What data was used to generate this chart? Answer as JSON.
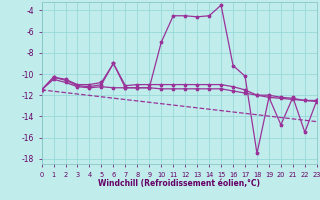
{
  "xlabel": "Windchill (Refroidissement éolien,°C)",
  "background_color": "#c0ecec",
  "grid_color": "#98d8d8",
  "line_color": "#993399",
  "xlim": [
    0,
    23
  ],
  "ylim": [
    -18.5,
    -3.2
  ],
  "yticks": [
    -18,
    -16,
    -14,
    -12,
    -10,
    -8,
    -6,
    -4
  ],
  "xticks": [
    0,
    1,
    2,
    3,
    4,
    5,
    6,
    7,
    8,
    9,
    10,
    11,
    12,
    13,
    14,
    15,
    16,
    17,
    18,
    19,
    20,
    21,
    22,
    23
  ],
  "series": [
    {
      "x": [
        0,
        1,
        2,
        3,
        4,
        5,
        6,
        7,
        8,
        9,
        10,
        11,
        12,
        13,
        14,
        15,
        16,
        17,
        18,
        19,
        20,
        21,
        22,
        23
      ],
      "y": [
        -11.5,
        -10.3,
        -10.6,
        -11.1,
        -11.2,
        -11.0,
        -9.0,
        -11.3,
        -11.3,
        -11.3,
        -7.0,
        -4.5,
        -4.5,
        -4.6,
        -4.5,
        -3.5,
        -9.2,
        -10.2,
        -17.5,
        -12.2,
        -14.8,
        -12.2,
        -15.5,
        -12.5
      ],
      "marker": true
    },
    {
      "x": [
        0,
        1,
        2,
        3,
        4,
        5,
        6,
        7,
        8,
        9,
        10,
        11,
        12,
        13,
        14,
        15,
        16,
        17,
        18,
        19,
        20,
        21,
        22,
        23
      ],
      "y": [
        -11.5,
        -10.5,
        -10.8,
        -11.2,
        -11.3,
        -11.2,
        -11.3,
        -11.3,
        -11.3,
        -11.3,
        -11.4,
        -11.4,
        -11.4,
        -11.4,
        -11.4,
        -11.4,
        -11.6,
        -11.8,
        -12.0,
        -12.2,
        -12.3,
        -12.4,
        -12.5,
        -12.6
      ],
      "marker": true
    },
    {
      "x": [
        0,
        1,
        2,
        3,
        4,
        5,
        6,
        7,
        8,
        9,
        10,
        11,
        12,
        13,
        14,
        15,
        16,
        17,
        18,
        19,
        20,
        21,
        22,
        23
      ],
      "y": [
        -11.5,
        -10.3,
        -10.5,
        -11.0,
        -11.0,
        -10.8,
        -9.0,
        -11.1,
        -11.0,
        -11.0,
        -11.0,
        -11.0,
        -11.0,
        -11.0,
        -11.0,
        -11.0,
        -11.2,
        -11.5,
        -12.0,
        -12.0,
        -12.2,
        -12.3,
        -12.5,
        -12.5
      ],
      "marker": true
    },
    {
      "x": [
        0,
        23
      ],
      "y": [
        -11.5,
        -14.5
      ],
      "marker": false,
      "linestyle": "--"
    }
  ]
}
